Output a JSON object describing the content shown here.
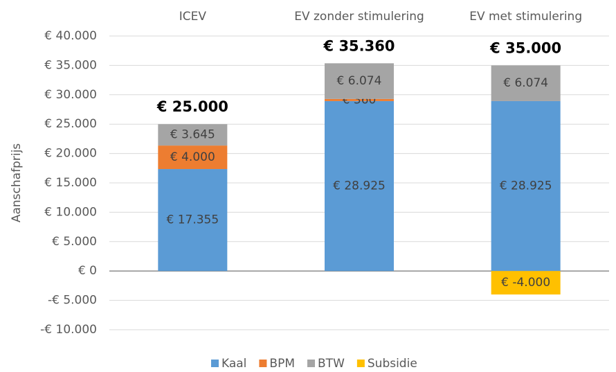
{
  "chart_data": {
    "type": "bar",
    "stacked": true,
    "y_label": "Aanschafprijs",
    "categories": [
      "ICEV",
      "EV zonder stimulering",
      "EV met stimulering"
    ],
    "series": [
      {
        "name": "Kaal",
        "color": "#5b9bd5",
        "values": [
          17355,
          28925,
          28925
        ],
        "value_labels": [
          "€ 17.355",
          "€ 28.925",
          "€ 28.925"
        ]
      },
      {
        "name": "BPM",
        "color": "#ed7d31",
        "values": [
          4000,
          360,
          null
        ],
        "value_labels": [
          "€ 4.000",
          "€ 360",
          null
        ]
      },
      {
        "name": "BTW",
        "color": "#a5a5a5",
        "values": [
          3645,
          6074,
          6074
        ],
        "value_labels": [
          "€ 3.645",
          "€ 6.074",
          "€ 6.074"
        ]
      },
      {
        "name": "Subsidie",
        "color": "#ffc000",
        "values": [
          null,
          null,
          -4000
        ],
        "value_labels": [
          null,
          null,
          "€ -4.000"
        ]
      }
    ],
    "totals": {
      "values": [
        25000,
        35360,
        35000
      ],
      "value_labels": [
        "€ 25.000",
        "€ 35.360",
        "€ 35.000"
      ]
    },
    "ylim": [
      -10000,
      40000
    ],
    "yticks": [
      {
        "value": -10000,
        "label": "-€ 10.000"
      },
      {
        "value": -5000,
        "label": "-€ 5.000"
      },
      {
        "value": 0,
        "label": "€ 0"
      },
      {
        "value": 5000,
        "label": "€ 5.000"
      },
      {
        "value": 10000,
        "label": "€ 10.000"
      },
      {
        "value": 15000,
        "label": "€ 15.000"
      },
      {
        "value": 20000,
        "label": "€ 20.000"
      },
      {
        "value": 25000,
        "label": "€ 25.000"
      },
      {
        "value": 30000,
        "label": "€ 30.000"
      },
      {
        "value": 35000,
        "label": "€ 35.000"
      },
      {
        "value": 40000,
        "label": "€ 40.000"
      }
    ],
    "grid": true,
    "legend": "bottom"
  }
}
